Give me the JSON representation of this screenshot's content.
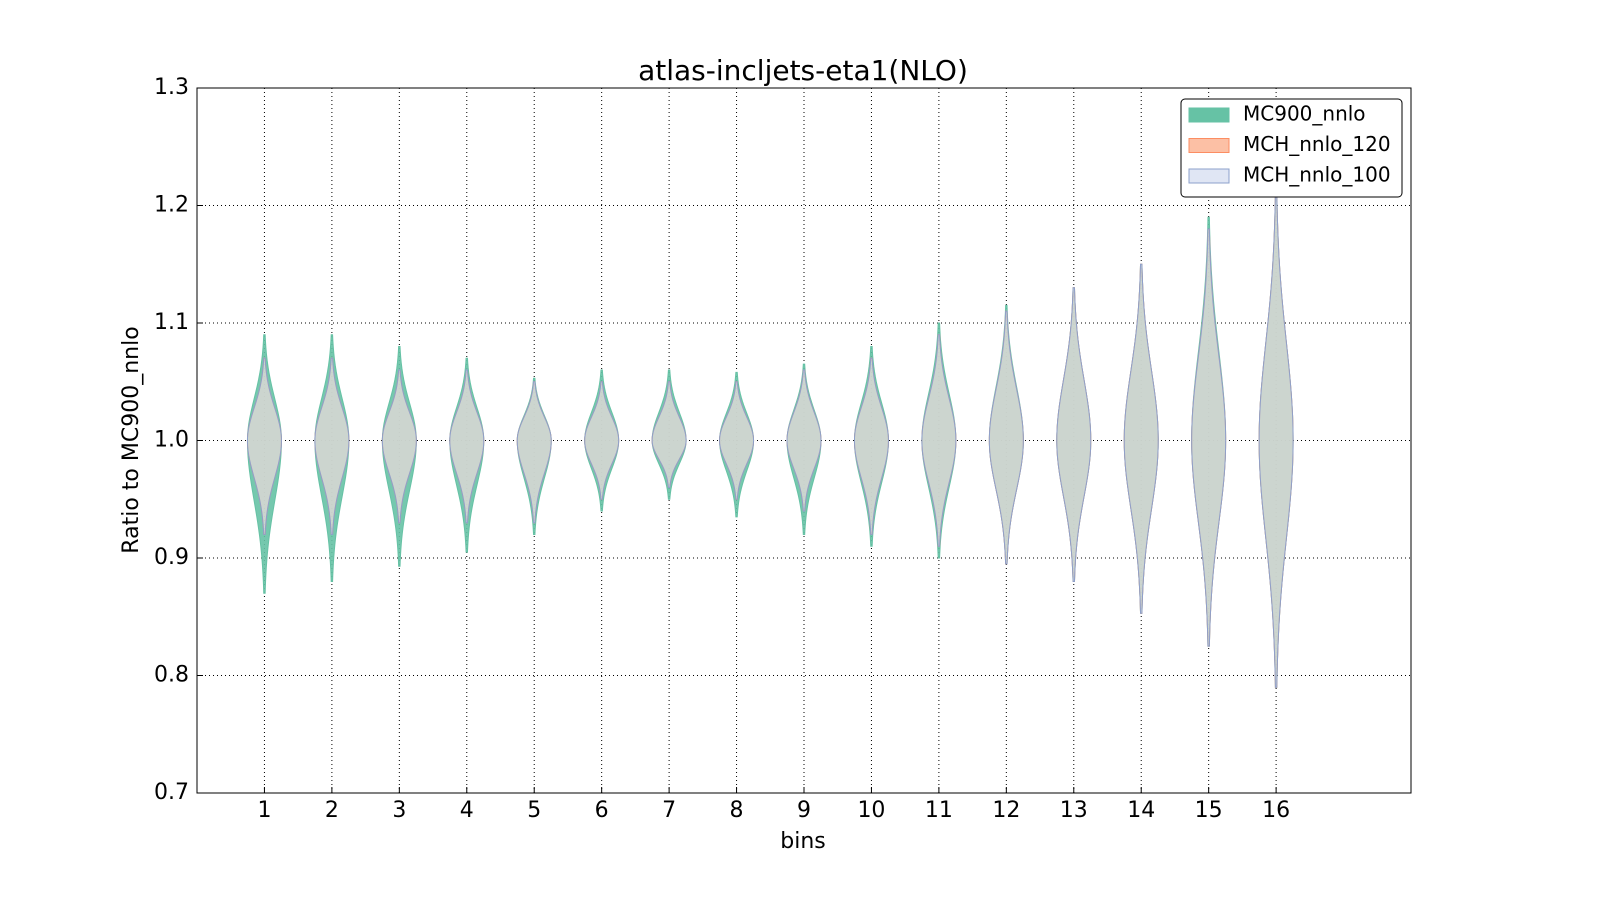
{
  "chart_data": {
    "type": "violin",
    "title": "atlas-incljets-eta1(NLO)",
    "x_label": "bins",
    "y_label": "Ratio to MC900_nnlo",
    "x": [
      1,
      2,
      3,
      4,
      5,
      6,
      7,
      8,
      9,
      10,
      11,
      12,
      13,
      14,
      15,
      16
    ],
    "xlim": [
      0,
      18
    ],
    "xticks": [
      1,
      2,
      3,
      4,
      5,
      6,
      7,
      8,
      9,
      10,
      11,
      12,
      13,
      14,
      15,
      16
    ],
    "ylim": [
      0.7,
      1.3
    ],
    "yticks": [
      0.7,
      0.8,
      0.9,
      {
        "value": 1,
        "label": "1.0"
      },
      1.1,
      1.2,
      1.3
    ],
    "grid": true,
    "legend": "upper right",
    "series": [
      {
        "name": "MC900_nnlo",
        "color": "#66c2a5",
        "min": [
          0.87,
          0.88,
          0.893,
          0.905,
          0.92,
          0.94,
          0.95,
          0.935,
          0.92,
          0.91,
          0.9,
          0.895,
          0.88,
          0.853,
          0.825,
          0.79
        ],
        "median": [
          1,
          1,
          1,
          1,
          1,
          1,
          1,
          1,
          1,
          1,
          1,
          1,
          1,
          1,
          1,
          1
        ],
        "max": [
          1.09,
          1.09,
          1.08,
          1.07,
          1.053,
          1.06,
          1.06,
          1.058,
          1.065,
          1.08,
          1.1,
          1.115,
          1.13,
          1.15,
          1.19,
          1.21
        ]
      },
      {
        "name": "MCH_nnlo_120",
        "color": "#fc8d62",
        "min": [
          0.92,
          0.92,
          0.93,
          0.93,
          0.93,
          0.95,
          0.96,
          0.95,
          0.94,
          0.92,
          0.91,
          0.895,
          0.88,
          0.853,
          0.825,
          0.79
        ],
        "median": [
          1,
          1,
          1,
          1,
          1,
          1,
          1,
          1,
          1,
          1,
          1,
          1,
          1,
          1,
          1,
          1
        ],
        "max": [
          1.07,
          1.07,
          1.06,
          1.06,
          1.05,
          1.05,
          1.05,
          1.05,
          1.06,
          1.07,
          1.09,
          1.11,
          1.13,
          1.15,
          1.18,
          1.21
        ]
      },
      {
        "name": "MCH_nnlo_100",
        "color": "#8da0cb",
        "min": [
          0.92,
          0.92,
          0.93,
          0.93,
          0.93,
          0.95,
          0.96,
          0.95,
          0.94,
          0.92,
          0.91,
          0.895,
          0.88,
          0.853,
          0.825,
          0.79
        ],
        "median": [
          1,
          1,
          1,
          1,
          1,
          1,
          1,
          1,
          1,
          1,
          1,
          1,
          1,
          1,
          1,
          1
        ],
        "max": [
          1.07,
          1.07,
          1.06,
          1.06,
          1.05,
          1.05,
          1.05,
          1.05,
          1.06,
          1.07,
          1.09,
          1.11,
          1.13,
          1.15,
          1.18,
          1.21
        ]
      }
    ]
  }
}
